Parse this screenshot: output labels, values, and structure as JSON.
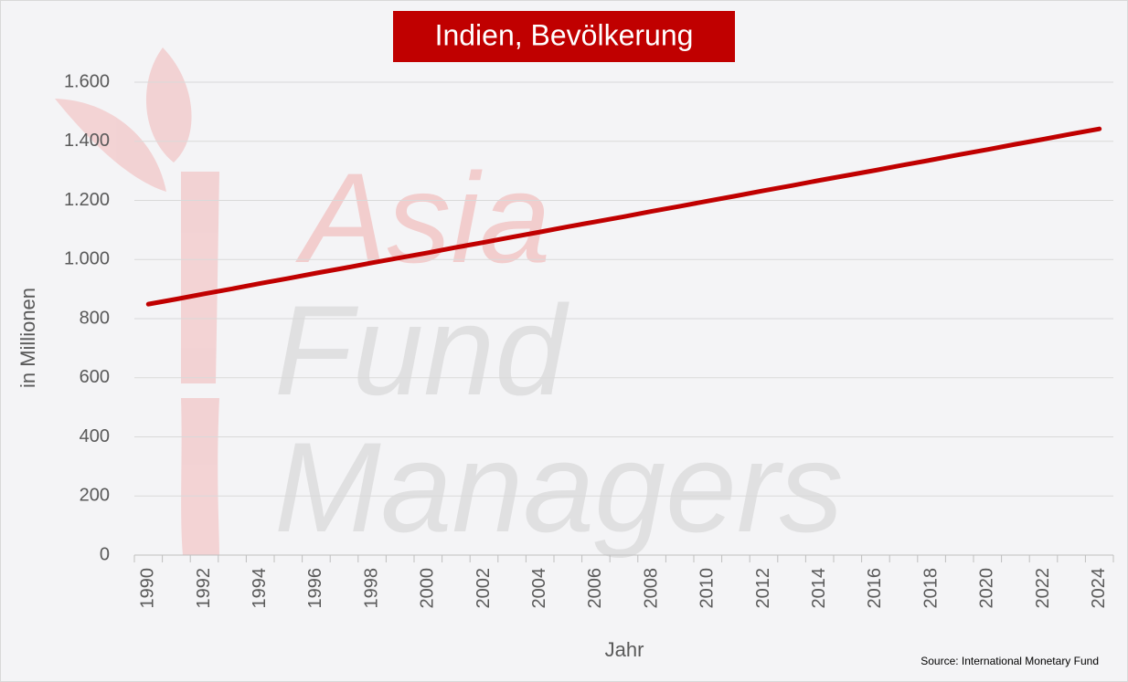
{
  "chart_data": {
    "type": "line",
    "title": "Indien, Bevölkerung",
    "y_label": "in Millionen",
    "x_label": "Jahr",
    "source": "Source: International Monetary Fund",
    "watermark": [
      "Asia",
      "Fund",
      "Managers"
    ],
    "categories": [
      "1990",
      null,
      "1992",
      null,
      "1994",
      null,
      "1996",
      null,
      "1998",
      null,
      "2000",
      null,
      "2002",
      null,
      "2004",
      null,
      "2006",
      null,
      "2008",
      null,
      "2010",
      null,
      "2012",
      null,
      "2014",
      null,
      "2016",
      null,
      "2018",
      null,
      "2020",
      null,
      "2022",
      null,
      "2024"
    ],
    "series": [
      {
        "name": "Bevölkerung",
        "color": "#c00000",
        "values": [
          849,
          866,
          884,
          901,
          919,
          936,
          954,
          971,
          989,
          1006,
          1023,
          1041,
          1058,
          1076,
          1093,
          1111,
          1128,
          1145,
          1163,
          1180,
          1198,
          1215,
          1233,
          1250,
          1268,
          1285,
          1302,
          1320,
          1337,
          1355,
          1372,
          1390,
          1407,
          1425,
          1442
        ]
      }
    ],
    "ylim": [
      0,
      1600
    ],
    "yticks": [
      0,
      200,
      400,
      600,
      800,
      {
        "value": 1000,
        "label": "1.000"
      },
      {
        "value": 1200,
        "label": "1.200"
      },
      {
        "value": 1400,
        "label": "1.400"
      },
      {
        "value": 1600,
        "label": "1.600"
      }
    ],
    "grid": true
  }
}
